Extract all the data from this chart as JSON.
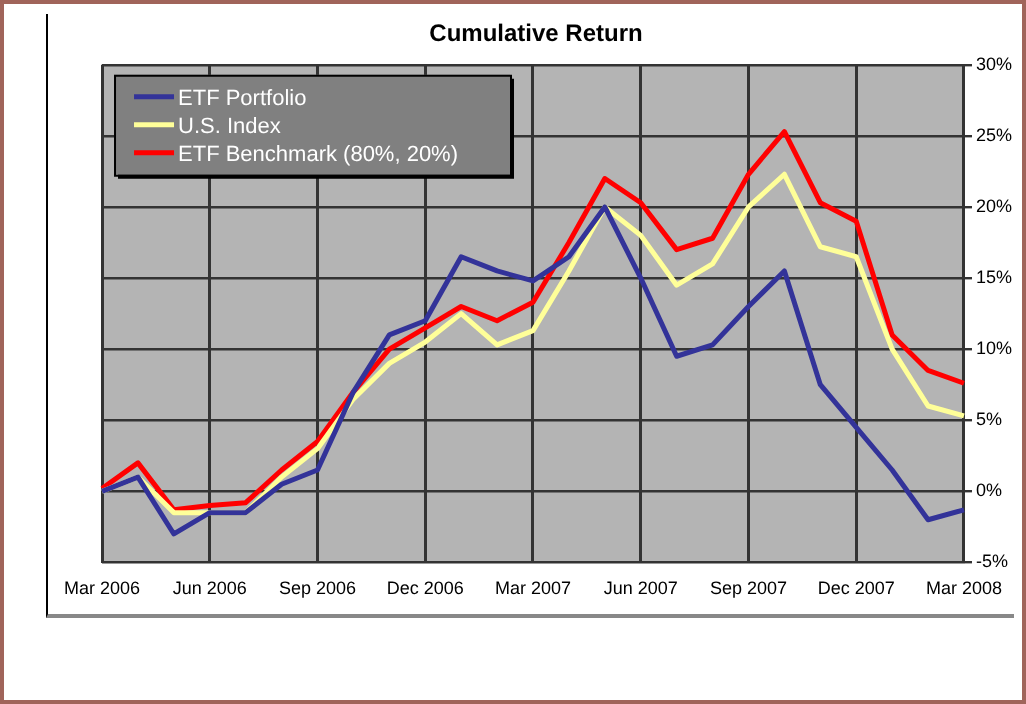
{
  "chart_data": {
    "type": "line",
    "title": "Cumulative Return",
    "categories": [
      "Mar 2006",
      null,
      null,
      "Jun 2006",
      null,
      null,
      "Sep 2006",
      null,
      null,
      "Dec 2006",
      null,
      null,
      "Mar 2007",
      null,
      null,
      "Jun 2007",
      null,
      null,
      "Sep 2007",
      null,
      null,
      "Dec 2007",
      null,
      null,
      "Mar 2008"
    ],
    "series": [
      {
        "name": "ETF Portfolio",
        "color": "#333399",
        "values": [
          0,
          1,
          -3,
          -1.5,
          -1.5,
          0.5,
          1.5,
          7,
          11,
          12,
          16.5,
          15.5,
          14.8,
          16.5,
          20,
          15,
          9.5,
          10.3,
          13,
          15.5,
          7.5,
          4.5,
          1.5,
          -2,
          -1.3
        ]
      },
      {
        "name": "U.S. Index",
        "color": "#ffff99",
        "values": [
          0,
          1,
          -1.5,
          -1.5,
          -1.5,
          1,
          3,
          6.5,
          9,
          10.5,
          12.5,
          10.3,
          11.3,
          15.5,
          20,
          18,
          14.5,
          16,
          20,
          22.3,
          17.2,
          16.5,
          10,
          6,
          5.3
        ]
      },
      {
        "name": "ETF Benchmark (80%, 20%)",
        "color": "#ff0000",
        "values": [
          0.2,
          2,
          -1.3,
          -1,
          -0.8,
          1.5,
          3.5,
          7,
          10,
          11.5,
          13,
          12,
          13.3,
          17.5,
          22,
          20.3,
          17,
          17.8,
          22.3,
          25.3,
          20.3,
          19,
          11,
          8.5,
          7.6
        ]
      }
    ],
    "ylim": [
      -5,
      30
    ],
    "yticks": [
      {
        "value": -5,
        "label": "-5%"
      },
      {
        "value": 0,
        "label": "0%"
      },
      {
        "value": 5,
        "label": "5%"
      },
      {
        "value": 10,
        "label": "10%"
      },
      {
        "value": 15,
        "label": "15%"
      },
      {
        "value": 20,
        "label": "20%"
      },
      {
        "value": 25,
        "label": "25%"
      },
      {
        "value": 30,
        "label": "30%"
      }
    ],
    "grid": true,
    "legend": "top left",
    "marker": "none",
    "line_style": "solid"
  }
}
